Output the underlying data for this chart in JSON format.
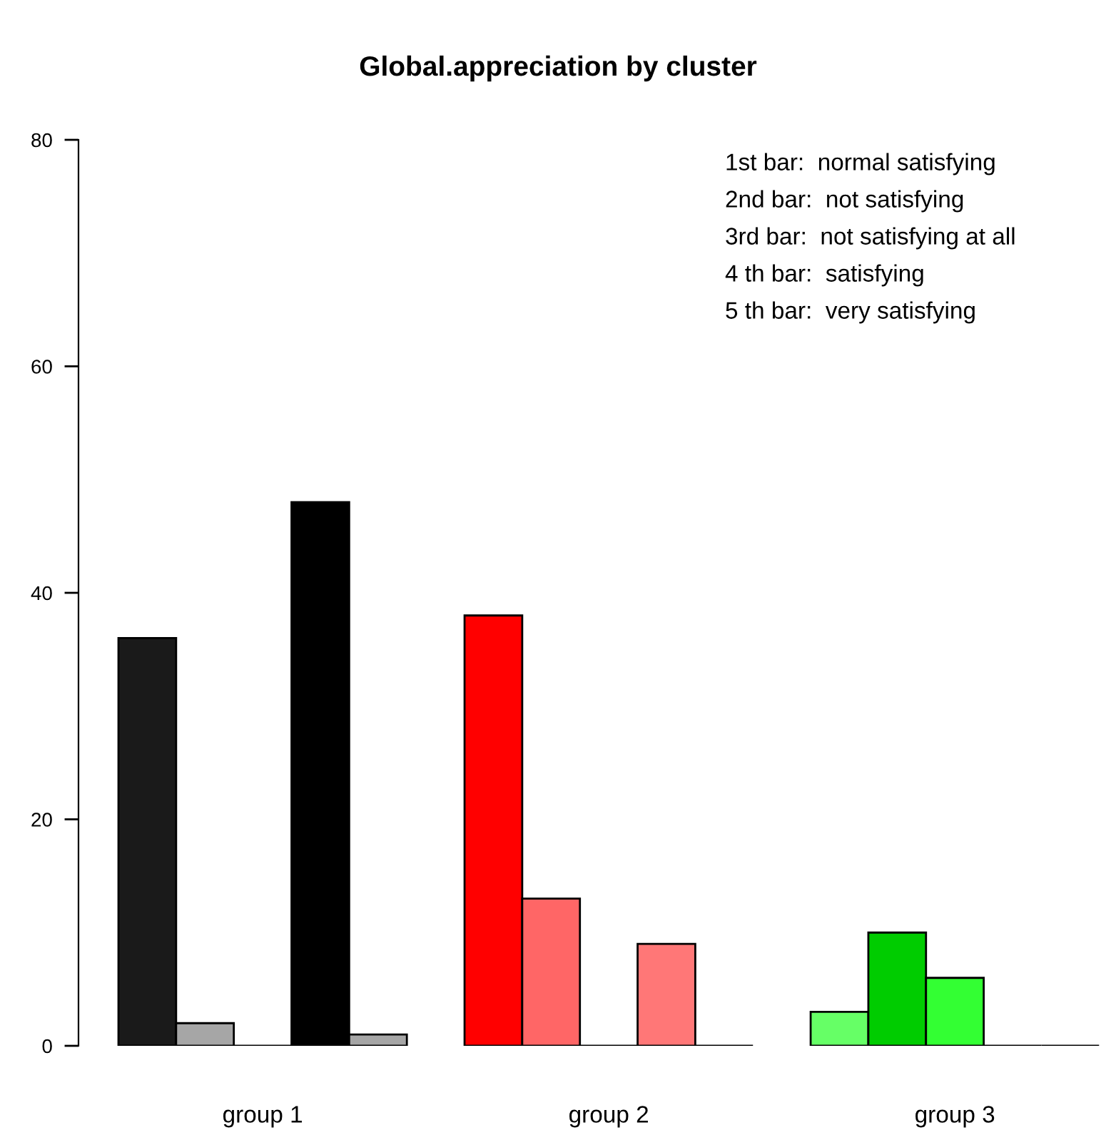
{
  "chart_data": {
    "type": "bar",
    "title": "Global.appreciation by cluster",
    "categories": [
      "group 1",
      "group 2",
      "group 3"
    ],
    "series": [
      {
        "colors": [
          "#1a1a1a",
          "#ff0000",
          "#66ff66"
        ],
        "values": [
          36,
          38,
          3
        ]
      },
      {
        "colors": [
          "#a6a6a6",
          "#ff6666",
          "#00cc00"
        ],
        "values": [
          2,
          13,
          10
        ]
      },
      {
        "colors": [
          "#000000",
          "#000000",
          "#33ff33"
        ],
        "values": [
          0,
          0,
          6
        ]
      },
      {
        "colors": [
          "#000000",
          "#ff7777",
          "#000000"
        ],
        "values": [
          48,
          9,
          0
        ]
      },
      {
        "colors": [
          "#a6a6a6",
          "#000000",
          "#000000"
        ],
        "values": [
          1,
          0,
          0
        ]
      }
    ],
    "ylim": [
      0,
      80
    ],
    "yticks": [
      0,
      20,
      40,
      60,
      80
    ],
    "grid": false,
    "legend": false,
    "annotations": [
      "1st bar:  normal satisfying",
      "2nd bar:  not satisfying",
      "3rd bar:  not satisfying at all",
      "4 th bar:  satisfying",
      "5 th bar:  very satisfying"
    ]
  }
}
